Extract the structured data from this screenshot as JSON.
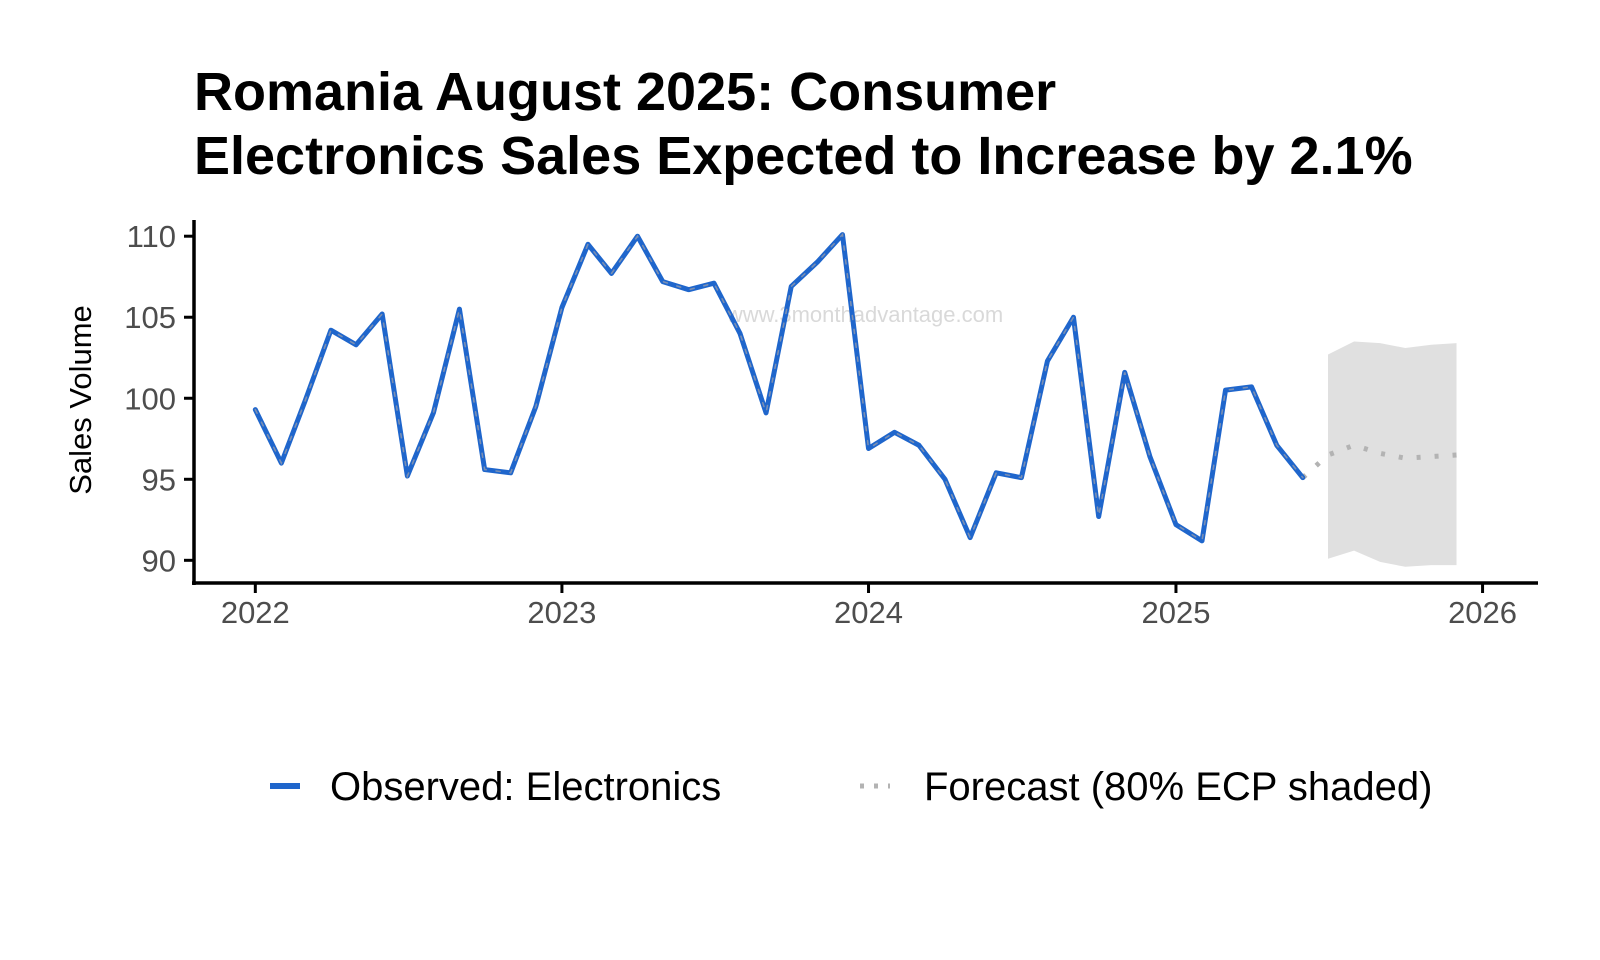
{
  "title_lines": [
    "Romania August 2025: Consumer",
    "Electronics Sales Expected to Increase by 2.1%"
  ],
  "watermark": "www.3monthadvantage.com",
  "legend": {
    "observed": "Observed: Electronics",
    "forecast": "Forecast (80% ECP shaded)"
  },
  "colors": {
    "observed": "#1f66cc",
    "observed_overlay": "#7a8fb3",
    "forecast": "#b3b3b3",
    "band": "#e0e0e0",
    "axis": "#000000"
  },
  "chart_data": {
    "type": "line",
    "xlabel": "",
    "ylabel": "Sales Volume",
    "xlim": [
      "2021-10-20",
      "2026-03-08"
    ],
    "ylim": [
      88.6,
      111.0
    ],
    "x_ticks": [
      "2022",
      "2023",
      "2024",
      "2025",
      "2026"
    ],
    "y_ticks": [
      90,
      95,
      100,
      105,
      110
    ],
    "grid": false,
    "legend_position": "bottom",
    "series": [
      {
        "name": "Observed: Electronics",
        "style": "solid",
        "x": [
          "2022-01",
          "2022-02",
          "2022-03",
          "2022-04",
          "2022-05",
          "2022-06",
          "2022-07",
          "2022-08",
          "2022-09",
          "2022-10",
          "2022-11",
          "2022-12",
          "2023-01",
          "2023-02",
          "2023-03",
          "2023-04",
          "2023-05",
          "2023-06",
          "2023-07",
          "2023-08",
          "2023-09",
          "2023-10",
          "2023-11",
          "2023-12",
          "2024-01",
          "2024-02",
          "2024-03",
          "2024-04",
          "2024-05",
          "2024-06",
          "2024-07",
          "2024-08",
          "2024-09",
          "2024-10",
          "2024-11",
          "2024-12",
          "2025-01",
          "2025-02",
          "2025-03",
          "2025-04",
          "2025-05",
          "2025-06"
        ],
        "values": [
          99.3,
          96.0,
          99.8,
          104.2,
          103.3,
          105.2,
          95.2,
          99.1,
          105.5,
          95.6,
          95.4,
          99.5,
          105.6,
          109.5,
          107.7,
          110.0,
          107.2,
          106.7,
          107.1,
          104.0,
          99.1,
          106.9,
          108.4,
          110.1,
          96.9,
          97.9,
          97.1,
          95.0,
          91.4,
          95.4,
          95.1,
          102.3,
          105.0,
          92.7,
          101.6,
          96.4,
          92.2,
          91.2,
          100.5,
          100.7,
          97.1,
          95.1
        ]
      },
      {
        "name": "Forecast (80% ECP shaded)",
        "style": "dotted",
        "x": [
          "2025-06",
          "2025-07",
          "2025-08",
          "2025-09",
          "2025-10",
          "2025-11",
          "2025-12"
        ],
        "values": [
          95.1,
          96.5,
          97.1,
          96.6,
          96.3,
          96.4,
          96.5
        ]
      }
    ],
    "forecast_band": {
      "x": [
        "2025-07",
        "2025-08",
        "2025-09",
        "2025-10",
        "2025-11",
        "2025-12"
      ],
      "lower": [
        90.1,
        90.6,
        89.9,
        89.6,
        89.7,
        89.7
      ],
      "upper": [
        102.7,
        103.5,
        103.4,
        103.1,
        103.3,
        103.4
      ]
    }
  }
}
